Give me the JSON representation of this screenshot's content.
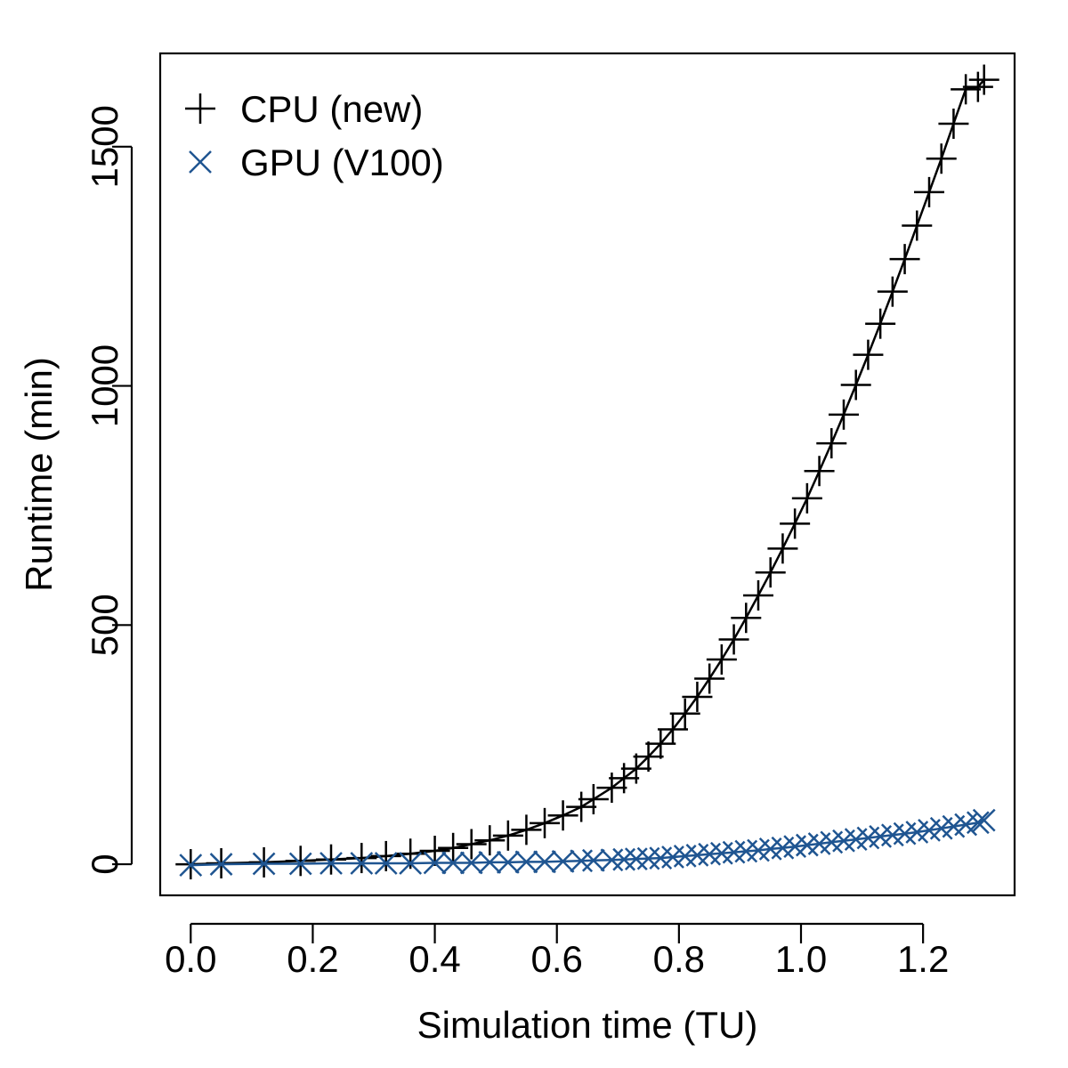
{
  "chart_data": {
    "type": "line",
    "xlabel": "Simulation time (TU)",
    "ylabel": "Runtime (min)",
    "xlim": [
      -0.05,
      1.35
    ],
    "ylim": [
      -65,
      1695
    ],
    "x_ticks": [
      0.0,
      0.2,
      0.4,
      0.6,
      0.8,
      1.0,
      1.2
    ],
    "x_tick_labels": [
      "0.0",
      "0.2",
      "0.4",
      "0.6",
      "0.8",
      "1.0",
      "1.2"
    ],
    "y_ticks": [
      0,
      500,
      1000,
      1500
    ],
    "y_tick_labels": [
      "0",
      "500",
      "1000",
      "1500"
    ],
    "legend_position": "top-left",
    "series": [
      {
        "name": "CPU (new)",
        "marker": "plus",
        "color": "#000000",
        "x": [
          0.0,
          0.05,
          0.12,
          0.18,
          0.23,
          0.28,
          0.32,
          0.36,
          0.4,
          0.43,
          0.46,
          0.49,
          0.52,
          0.55,
          0.58,
          0.61,
          0.64,
          0.66,
          0.69,
          0.71,
          0.73,
          0.75,
          0.77,
          0.79,
          0.81,
          0.83,
          0.85,
          0.87,
          0.89,
          0.91,
          0.93,
          0.95,
          0.97,
          0.99,
          1.01,
          1.03,
          1.05,
          1.07,
          1.09,
          1.11,
          1.13,
          1.15,
          1.17,
          1.19,
          1.21,
          1.23,
          1.25,
          1.27,
          1.29,
          1.3
        ],
        "y": [
          0,
          2,
          4,
          7,
          10,
          13,
          17,
          22,
          28,
          34,
          42,
          50,
          60,
          72,
          86,
          102,
          120,
          136,
          160,
          180,
          200,
          225,
          252,
          282,
          315,
          350,
          388,
          428,
          470,
          515,
          562,
          610,
          660,
          712,
          765,
          822,
          880,
          940,
          1002,
          1065,
          1130,
          1197,
          1265,
          1335,
          1405,
          1475,
          1548,
          1620,
          1625,
          1640
        ]
      },
      {
        "name": "GPU (V100)",
        "marker": "x",
        "color": "#1f5591",
        "x": [
          0.0,
          0.05,
          0.12,
          0.18,
          0.23,
          0.28,
          0.32,
          0.36,
          0.4,
          0.43,
          0.46,
          0.49,
          0.52,
          0.55,
          0.58,
          0.61,
          0.64,
          0.66,
          0.69,
          0.71,
          0.73,
          0.75,
          0.77,
          0.79,
          0.81,
          0.83,
          0.85,
          0.87,
          0.89,
          0.91,
          0.93,
          0.95,
          0.97,
          0.99,
          1.01,
          1.03,
          1.05,
          1.07,
          1.09,
          1.11,
          1.13,
          1.15,
          1.17,
          1.19,
          1.21,
          1.23,
          1.25,
          1.27,
          1.29,
          1.3
        ],
        "y": [
          -2,
          0,
          1,
          1,
          2,
          2,
          2,
          2,
          3,
          3,
          3,
          4,
          4,
          5,
          5,
          6,
          7,
          8,
          9,
          10,
          11,
          12,
          13,
          15,
          17,
          19,
          21,
          23,
          25,
          27,
          29,
          32,
          34,
          37,
          40,
          43,
          46,
          49,
          52,
          55,
          58,
          61,
          64,
          67,
          71,
          75,
          79,
          83,
          87,
          92
        ]
      }
    ]
  }
}
